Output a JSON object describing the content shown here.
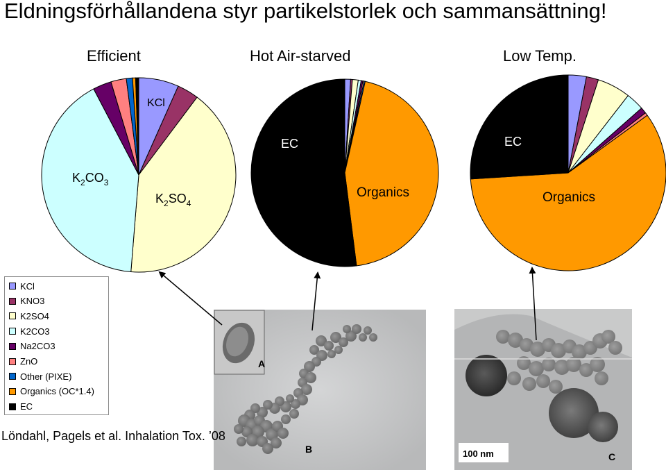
{
  "slide": {
    "title": "Eldningsförhållandena styr partikelstorlek och sammansättning!",
    "citation": "Löndahl, Pagels et al. Inhalation Tox. ’08"
  },
  "colors": {
    "KCl": "#9999ff",
    "KNO3": "#993366",
    "K2SO4": "#ffffcc",
    "K2CO3": "#ccffff",
    "Na2CO3": "#660066",
    "ZnO": "#ff8080",
    "Other (PIXE)": "#0066cc",
    "Organics (OC*1.4)": "#ff9900",
    "EC": "#000000"
  },
  "legend": {
    "items": [
      {
        "label": "KCl",
        "color": "#9999ff"
      },
      {
        "label": "KNO3",
        "color": "#993366"
      },
      {
        "label": "K2SO4",
        "color": "#ffffcc"
      },
      {
        "label": "K2CO3",
        "color": "#ccffff"
      },
      {
        "label": "Na2CO3",
        "color": "#660066"
      },
      {
        "label": "ZnO",
        "color": "#ff8080"
      },
      {
        "label": "Other (PIXE)",
        "color": "#0066cc"
      },
      {
        "label": "Organics (OC*1.4)",
        "color": "#ff9900"
      },
      {
        "label": "EC",
        "color": "#000000"
      }
    ]
  },
  "chart_data": [
    {
      "type": "pie",
      "title": "Efficient",
      "start": "12 o'clock, clockwise",
      "slices": [
        {
          "label": "KCl",
          "value": 6.5
        },
        {
          "label": "KNO3",
          "value": 3.5
        },
        {
          "label": "K2SO4",
          "value": 40
        },
        {
          "label": "K2CO3",
          "value": 40
        },
        {
          "label": "Na2CO3",
          "value": 3
        },
        {
          "label": "ZnO",
          "value": 2.5
        },
        {
          "label": "Other (PIXE)",
          "value": 1
        },
        {
          "label": "Organics (OC*1.4)",
          "value": 0.5
        },
        {
          "label": "EC",
          "value": 0.5
        }
      ],
      "annotations": [
        {
          "text": "KCl"
        },
        {
          "text": "K2SO4",
          "main": "K",
          "sub1": "2",
          "mid": "SO",
          "sub2": "4"
        },
        {
          "text": "K2CO3",
          "main": "K",
          "sub1": "2",
          "mid": "CO",
          "sub2": "3"
        }
      ]
    },
    {
      "type": "pie",
      "title": "Hot Air-starved",
      "start": "12 o'clock, clockwise",
      "slices": [
        {
          "label": "KCl",
          "value": 1
        },
        {
          "label": "KNO3",
          "value": 0.3
        },
        {
          "label": "K2SO4",
          "value": 1
        },
        {
          "label": "K2CO3",
          "value": 0.5
        },
        {
          "label": "Na2CO3",
          "value": 0.3
        },
        {
          "label": "ZnO",
          "value": 0.2
        },
        {
          "label": "Other (PIXE)",
          "value": 0.2
        },
        {
          "label": "Organics (OC*1.4)",
          "value": 44.5
        },
        {
          "label": "EC",
          "value": 52
        }
      ],
      "annotations": [
        {
          "text": "EC"
        },
        {
          "text": "Organics"
        }
      ]
    },
    {
      "type": "pie",
      "title": "Low Temp.",
      "start": "12 o'clock, clockwise",
      "slices": [
        {
          "label": "KCl",
          "value": 3
        },
        {
          "label": "KNO3",
          "value": 2
        },
        {
          "label": "K2SO4",
          "value": 5.5
        },
        {
          "label": "K2CO3",
          "value": 3
        },
        {
          "label": "Na2CO3",
          "value": 1
        },
        {
          "label": "ZnO",
          "value": 0.5
        },
        {
          "label": "Other (PIXE)",
          "value": 0
        },
        {
          "label": "Organics (OC*1.4)",
          "value": 59
        },
        {
          "label": "EC",
          "value": 26
        }
      ],
      "annotations": [
        {
          "text": "EC"
        },
        {
          "text": "Organics"
        }
      ]
    }
  ],
  "images": {
    "tem_b": {
      "letter_a": "A",
      "letter_b": "B"
    },
    "tem_c": {
      "letter_c": "C",
      "scalebar": "100 nm"
    }
  }
}
